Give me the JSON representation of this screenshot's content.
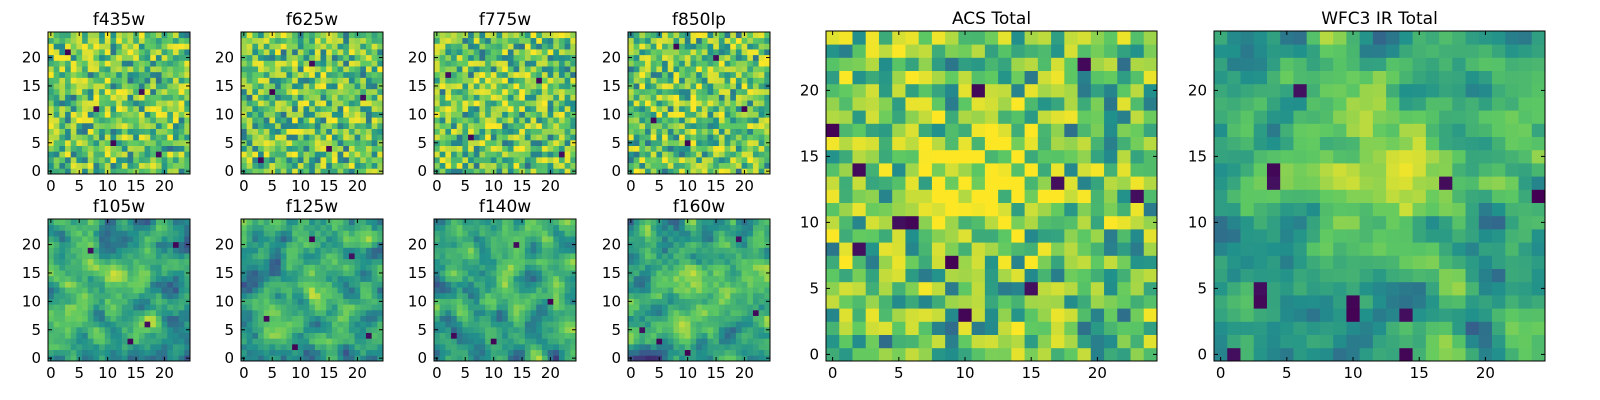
{
  "figure": {
    "panel_count": 10,
    "colormap": "viridis",
    "colormap_stops": [
      "#440154",
      "#3b528b",
      "#21918c",
      "#5ec962",
      "#fde725"
    ],
    "background": "#ffffff",
    "axes_color": "#000000"
  },
  "chart_data": [
    {
      "type": "heatmap",
      "title": "f435w",
      "size": [
        25,
        25
      ],
      "xlim": [
        0,
        24
      ],
      "ylim": [
        0,
        24
      ],
      "xticks": [
        0,
        5,
        10,
        15,
        20
      ],
      "yticks": [
        0,
        5,
        10,
        15,
        20
      ],
      "xlabel": "",
      "ylabel": "",
      "grid": false,
      "pattern": "uniform noise",
      "seed": 11,
      "smooth": 0,
      "center_boost": 0.04,
      "dark_spots": [
        [
          8,
          11
        ],
        [
          19,
          3
        ],
        [
          3,
          21
        ],
        [
          16,
          14
        ],
        [
          11,
          5
        ]
      ]
    },
    {
      "type": "heatmap",
      "title": "f625w",
      "size": [
        25,
        25
      ],
      "xlim": [
        0,
        24
      ],
      "ylim": [
        0,
        24
      ],
      "xticks": [
        0,
        5,
        10,
        15,
        20
      ],
      "yticks": [
        0,
        5,
        10,
        15,
        20
      ],
      "xlabel": "",
      "ylabel": "",
      "grid": false,
      "pattern": "uniform noise",
      "seed": 23,
      "smooth": 0,
      "center_boost": 0.05,
      "dark_spots": [
        [
          5,
          14
        ],
        [
          15,
          4
        ],
        [
          21,
          13
        ],
        [
          3,
          2
        ],
        [
          12,
          19
        ]
      ]
    },
    {
      "type": "heatmap",
      "title": "f775w",
      "size": [
        25,
        25
      ],
      "xlim": [
        0,
        24
      ],
      "ylim": [
        0,
        24
      ],
      "xticks": [
        0,
        5,
        10,
        15,
        20
      ],
      "yticks": [
        0,
        5,
        10,
        15,
        20
      ],
      "xlabel": "",
      "ylabel": "",
      "grid": false,
      "pattern": "uniform noise",
      "seed": 37,
      "smooth": 0,
      "center_boost": 0.08,
      "dark_spots": [
        [
          6,
          6
        ],
        [
          18,
          16
        ],
        [
          22,
          3
        ],
        [
          2,
          17
        ]
      ]
    },
    {
      "type": "heatmap",
      "title": "f850lp",
      "size": [
        25,
        25
      ],
      "xlim": [
        0,
        24
      ],
      "ylim": [
        0,
        24
      ],
      "xticks": [
        0,
        5,
        10,
        15,
        20
      ],
      "yticks": [
        0,
        5,
        10,
        15,
        20
      ],
      "xlabel": "",
      "ylabel": "",
      "grid": false,
      "pattern": "uniform noise",
      "seed": 41,
      "smooth": 0,
      "center_boost": 0.06,
      "dark_spots": [
        [
          10,
          5
        ],
        [
          20,
          11
        ],
        [
          4,
          9
        ],
        [
          15,
          20
        ],
        [
          8,
          22
        ]
      ]
    },
    {
      "type": "heatmap",
      "title": "f105w",
      "size": [
        25,
        25
      ],
      "xlim": [
        0,
        24
      ],
      "ylim": [
        0,
        24
      ],
      "xticks": [
        0,
        5,
        10,
        15,
        20
      ],
      "yticks": [
        0,
        5,
        10,
        15,
        20
      ],
      "xlabel": "",
      "ylabel": "",
      "grid": false,
      "pattern": "correlated noise",
      "seed": 53,
      "smooth": 1,
      "center_boost": 0.12,
      "dark_spots": [
        [
          7,
          19
        ],
        [
          17,
          6
        ],
        [
          22,
          20
        ],
        [
          14,
          3
        ]
      ]
    },
    {
      "type": "heatmap",
      "title": "f125w",
      "size": [
        25,
        25
      ],
      "xlim": [
        0,
        24
      ],
      "ylim": [
        0,
        24
      ],
      "xticks": [
        0,
        5,
        10,
        15,
        20
      ],
      "yticks": [
        0,
        5,
        10,
        15,
        20
      ],
      "xlabel": "",
      "ylabel": "",
      "grid": false,
      "pattern": "correlated noise",
      "seed": 67,
      "smooth": 1,
      "center_boost": 0.12,
      "dark_spots": [
        [
          12,
          21
        ],
        [
          19,
          18
        ],
        [
          4,
          7
        ],
        [
          22,
          4
        ],
        [
          9,
          2
        ]
      ]
    },
    {
      "type": "heatmap",
      "title": "f140w",
      "size": [
        25,
        25
      ],
      "xlim": [
        0,
        24
      ],
      "ylim": [
        0,
        24
      ],
      "xticks": [
        0,
        5,
        10,
        15,
        20
      ],
      "yticks": [
        0,
        5,
        10,
        15,
        20
      ],
      "xlabel": "",
      "ylabel": "",
      "grid": false,
      "pattern": "correlated noise",
      "seed": 79,
      "smooth": 1,
      "center_boost": 0.14,
      "dark_spots": [
        [
          3,
          4
        ],
        [
          14,
          20
        ],
        [
          20,
          10
        ],
        [
          10,
          3
        ]
      ]
    },
    {
      "type": "heatmap",
      "title": "f160w",
      "size": [
        25,
        25
      ],
      "xlim": [
        0,
        24
      ],
      "ylim": [
        0,
        24
      ],
      "xticks": [
        0,
        5,
        10,
        15,
        20
      ],
      "yticks": [
        0,
        5,
        10,
        15,
        20
      ],
      "xlabel": "",
      "ylabel": "",
      "grid": false,
      "pattern": "correlated noise",
      "seed": 97,
      "smooth": 1,
      "center_boost": 0.14,
      "dark_spots": [
        [
          2,
          5
        ],
        [
          5,
          3
        ],
        [
          19,
          21
        ],
        [
          22,
          8
        ],
        [
          10,
          1
        ]
      ]
    },
    {
      "type": "heatmap",
      "title": "ACS Total",
      "size": [
        25,
        25
      ],
      "xlim": [
        0,
        24
      ],
      "ylim": [
        0,
        24
      ],
      "xticks": [
        0,
        5,
        10,
        15,
        20
      ],
      "yticks": [
        0,
        5,
        10,
        15,
        20
      ],
      "xlabel": "",
      "ylabel": "",
      "grid": false,
      "pattern": "summed noise with bright center",
      "seed": 131,
      "smooth": 0,
      "center_boost": 0.3,
      "dark_spots": [
        [
          5,
          10
        ],
        [
          6,
          10
        ],
        [
          9,
          7
        ],
        [
          10,
          3
        ],
        [
          2,
          14
        ],
        [
          0,
          17
        ],
        [
          2,
          8
        ],
        [
          17,
          13
        ],
        [
          23,
          12
        ],
        [
          19,
          22
        ],
        [
          11,
          20
        ],
        [
          15,
          5
        ]
      ]
    },
    {
      "type": "heatmap",
      "title": "WFC3 IR Total",
      "size": [
        25,
        25
      ],
      "xlim": [
        0,
        24
      ],
      "ylim": [
        0,
        24
      ],
      "xticks": [
        0,
        5,
        10,
        15,
        20
      ],
      "yticks": [
        0,
        5,
        10,
        15,
        20
      ],
      "xlabel": "",
      "ylabel": "",
      "grid": false,
      "pattern": "summed smooth noise with bright center",
      "seed": 149,
      "smooth": 1,
      "center_boost": 0.34,
      "dark_spots": [
        [
          4,
          14
        ],
        [
          4,
          13
        ],
        [
          3,
          5
        ],
        [
          3,
          4
        ],
        [
          10,
          4
        ],
        [
          10,
          3
        ],
        [
          17,
          13
        ],
        [
          14,
          3
        ],
        [
          14,
          0
        ],
        [
          6,
          20
        ],
        [
          1,
          0
        ],
        [
          24,
          12
        ]
      ]
    }
  ]
}
